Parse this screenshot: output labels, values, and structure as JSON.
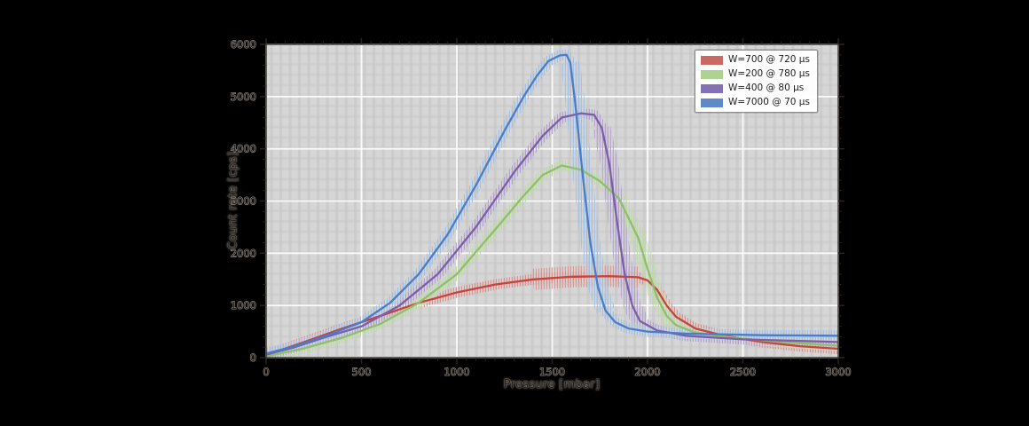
{
  "figure": {
    "title": "",
    "background_color": "#000000",
    "plot_background_color": "#d6d6d6"
  },
  "colors": {
    "major_grid": "#ffffff",
    "minor_stripe": "#c2c2c2",
    "spine": "#3f3a35",
    "tick": "#2e2925",
    "tick_label_fill": "#241f1c",
    "tick_label_halo": "#a99f97",
    "legend_border": "#8f8f8f",
    "legend_background": "#ffffff"
  },
  "chart_data": {
    "type": "line",
    "title": "",
    "xlabel": "Pressure [mbar]",
    "ylabel": "Count rate [cps]",
    "xlim": [
      0,
      3000
    ],
    "ylim": [
      0,
      6000
    ],
    "xticks": [
      0,
      500,
      1000,
      1500,
      2000,
      2500,
      3000
    ],
    "yticks": [
      0,
      1000,
      2000,
      3000,
      4000,
      5000,
      6000
    ],
    "x_minor_step": 50,
    "y_minor_step": 200,
    "grid": true,
    "legend_position": "upper right",
    "series": [
      {
        "name": "W=700 @ 720 µs",
        "color": "#c9423c",
        "band_color": "#e08e88",
        "legend_color": "#c96a62",
        "band_width": 12,
        "noise_zone": {
          "range": [
            1400,
            1980
          ],
          "width": 24
        },
        "values": [
          [
            0,
            50
          ],
          [
            200,
            300
          ],
          [
            400,
            560
          ],
          [
            600,
            800
          ],
          [
            800,
            1050
          ],
          [
            1000,
            1250
          ],
          [
            1200,
            1400
          ],
          [
            1400,
            1500
          ],
          [
            1600,
            1550
          ],
          [
            1800,
            1560
          ],
          [
            1950,
            1540
          ],
          [
            2000,
            1480
          ],
          [
            2050,
            1300
          ],
          [
            2100,
            1000
          ],
          [
            2150,
            780
          ],
          [
            2250,
            560
          ],
          [
            2400,
            420
          ],
          [
            2600,
            300
          ],
          [
            2800,
            220
          ],
          [
            3000,
            170
          ]
        ]
      },
      {
        "name": "W=200 @ 780 µs",
        "color": "#8fbf6a",
        "band_color": "#bcdca2",
        "legend_color": "#aed291",
        "band_width": 12,
        "noise_zone": {
          "range": [
            1850,
            2200
          ],
          "width": 18
        },
        "values": [
          [
            0,
            20
          ],
          [
            200,
            180
          ],
          [
            400,
            380
          ],
          [
            600,
            650
          ],
          [
            800,
            1050
          ],
          [
            1000,
            1600
          ],
          [
            1200,
            2450
          ],
          [
            1350,
            3100
          ],
          [
            1450,
            3500
          ],
          [
            1550,
            3680
          ],
          [
            1650,
            3600
          ],
          [
            1750,
            3380
          ],
          [
            1850,
            3050
          ],
          [
            1950,
            2300
          ],
          [
            2000,
            1700
          ],
          [
            2050,
            1150
          ],
          [
            2100,
            800
          ],
          [
            2150,
            620
          ],
          [
            2250,
            480
          ],
          [
            2450,
            380
          ],
          [
            2700,
            300
          ],
          [
            3000,
            230
          ]
        ]
      },
      {
        "name": "W=400 @ 80 µs",
        "color": "#7a5fa8",
        "band_color": "#b3a0d2",
        "legend_color": "#8272b4",
        "band_width": 12,
        "noise_zone": {
          "range": [
            1760,
            1980
          ],
          "width": 20
        },
        "values": [
          [
            0,
            60
          ],
          [
            150,
            200
          ],
          [
            300,
            380
          ],
          [
            500,
            600
          ],
          [
            700,
            1000
          ],
          [
            900,
            1600
          ],
          [
            1100,
            2500
          ],
          [
            1300,
            3550
          ],
          [
            1450,
            4250
          ],
          [
            1550,
            4600
          ],
          [
            1650,
            4680
          ],
          [
            1720,
            4650
          ],
          [
            1760,
            4400
          ],
          [
            1800,
            3700
          ],
          [
            1840,
            2600
          ],
          [
            1880,
            1600
          ],
          [
            1920,
            1000
          ],
          [
            1960,
            700
          ],
          [
            2050,
            520
          ],
          [
            2200,
            420
          ],
          [
            2500,
            350
          ],
          [
            3000,
            300
          ]
        ]
      },
      {
        "name": "W=7000 @ 70 µs",
        "color": "#4a7cc7",
        "band_color": "#9fc0e8",
        "legend_color": "#6089c8",
        "band_width": 12,
        "noise_zone": {
          "range": [
            1595,
            1790
          ],
          "width": 22
        },
        "values": [
          [
            0,
            80
          ],
          [
            150,
            220
          ],
          [
            300,
            400
          ],
          [
            500,
            680
          ],
          [
            650,
            1050
          ],
          [
            800,
            1600
          ],
          [
            950,
            2350
          ],
          [
            1100,
            3300
          ],
          [
            1250,
            4350
          ],
          [
            1350,
            5000
          ],
          [
            1420,
            5400
          ],
          [
            1480,
            5680
          ],
          [
            1540,
            5790
          ],
          [
            1575,
            5800
          ],
          [
            1595,
            5650
          ],
          [
            1620,
            4900
          ],
          [
            1660,
            3500
          ],
          [
            1700,
            2200
          ],
          [
            1740,
            1350
          ],
          [
            1780,
            900
          ],
          [
            1830,
            680
          ],
          [
            1900,
            560
          ],
          [
            2000,
            500
          ],
          [
            2200,
            460
          ],
          [
            2600,
            430
          ],
          [
            3000,
            420
          ]
        ]
      }
    ]
  }
}
